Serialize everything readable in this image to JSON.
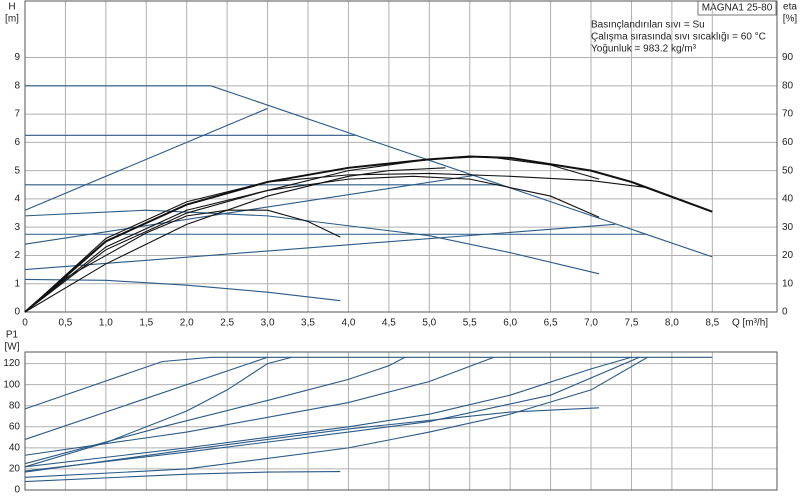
{
  "chart_data": [
    {
      "type": "line",
      "title": "MAGNA1 25-80",
      "annotations": [
        "Basınçlandırılan sıvı = Su",
        "Çalışma sırasında sıvı sıcaklığı = 60 °C",
        "Yoğunluk = 983.2 kg/m³"
      ],
      "y_label": "H",
      "y_unit": "[m]",
      "y2_label": "eta",
      "y2_unit": "[%]",
      "x_label": "Q [m³/h]",
      "xlim": [
        0,
        9.3
      ],
      "xticks": [
        0,
        {
          "value": 0.5,
          "label": "0,5"
        },
        {
          "value": 1,
          "label": "1,0"
        },
        {
          "value": 1.5,
          "label": "1,5"
        },
        {
          "value": 2,
          "label": "2,0"
        },
        {
          "value": 2.5,
          "label": "2,5"
        },
        {
          "value": 3,
          "label": "3,0"
        },
        {
          "value": 3.5,
          "label": "3,5"
        },
        {
          "value": 4,
          "label": "4,0"
        },
        {
          "value": 4.5,
          "label": "4,5"
        },
        {
          "value": 5,
          "label": "5,0"
        },
        {
          "value": 5.5,
          "label": "5,5"
        },
        {
          "value": 6,
          "label": "6,0"
        },
        {
          "value": 6.5,
          "label": "6,5"
        },
        {
          "value": 7,
          "label": "7,0"
        },
        {
          "value": 7.5,
          "label": "7,5"
        },
        {
          "value": 8,
          "label": "8,0"
        },
        {
          "value": 8.5,
          "label": "8,5"
        }
      ],
      "ylim": [
        0,
        11
      ],
      "yticks": [
        0,
        1,
        2,
        3,
        4,
        5,
        6,
        7,
        8,
        9
      ],
      "y2lim": [
        0,
        110
      ],
      "y2ticks": [
        0,
        10,
        20,
        30,
        40,
        50,
        60,
        70,
        80,
        90
      ],
      "series": [
        {
          "color": "#2b5a86",
          "x": [
            0,
            2.3,
            8.5
          ],
          "values": [
            8,
            8,
            1.95
          ]
        },
        {
          "color": "#2b5a86",
          "x": [
            0,
            4.09
          ],
          "values": [
            6.25,
            6.25
          ]
        },
        {
          "color": "#2b5a86",
          "x": [
            0,
            5.89
          ],
          "values": [
            4.5,
            4.5
          ]
        },
        {
          "color": "#2b5a86",
          "x": [
            0,
            7.68
          ],
          "values": [
            2.75,
            2.75
          ]
        },
        {
          "color": "#2b5a86",
          "x": [
            0,
            3.0
          ],
          "values": [
            3.6,
            7.2
          ]
        },
        {
          "color": "#2b5a86",
          "x": [
            0,
            5.6
          ],
          "values": [
            2.4,
            4.85
          ]
        },
        {
          "color": "#2b5a86",
          "x": [
            0,
            7.3
          ],
          "values": [
            1.5,
            3.1
          ]
        },
        {
          "color": "#2b5a86",
          "x": [
            0,
            1,
            2,
            3,
            3.9
          ],
          "values": [
            1.15,
            1.12,
            0.95,
            0.7,
            0.4
          ]
        },
        {
          "color": "#2b5a86",
          "x": [
            0,
            1.5,
            3,
            5,
            6,
            7.1
          ],
          "values": [
            3.4,
            3.6,
            3.4,
            2.7,
            2.1,
            1.35
          ]
        },
        {
          "color": "#111111",
          "axis": "y2",
          "width": 2,
          "x": [
            0,
            1,
            2,
            3,
            4,
            5,
            5.5,
            6,
            7,
            7.5,
            8.5
          ],
          "values": [
            0,
            25,
            38,
            46,
            51,
            54,
            55,
            54.5,
            50,
            46,
            35.5
          ]
        },
        {
          "color": "#111111",
          "axis": "y2",
          "x": [
            0,
            1,
            2,
            3,
            4,
            5,
            6,
            7,
            7.7
          ],
          "values": [
            0,
            26,
            39,
            46,
            48.5,
            49,
            48,
            46.5,
            44
          ]
        },
        {
          "color": "#111111",
          "axis": "y2",
          "x": [
            0,
            1,
            2,
            3,
            4,
            5,
            5.7,
            6.5,
            7.1
          ],
          "values": [
            0,
            22,
            35,
            43,
            50,
            54,
            55,
            52,
            47
          ]
        },
        {
          "color": "#111111",
          "axis": "y2",
          "x": [
            0,
            1,
            2,
            3,
            4,
            4.8,
            5.5,
            6.5,
            7.1
          ],
          "values": [
            0,
            23,
            36,
            43,
            47,
            48,
            47,
            41,
            33.5
          ]
        },
        {
          "color": "#111111",
          "axis": "y2",
          "x": [
            0,
            0.5,
            1,
            1.5,
            2,
            2.5,
            3,
            3.5,
            3.9
          ],
          "values": [
            0,
            12,
            20,
            28,
            34,
            36,
            36,
            32,
            26.5
          ]
        },
        {
          "color": "#111111",
          "axis": "y2",
          "x": [
            0,
            1,
            2,
            3,
            4,
            4.5,
            5.2
          ],
          "values": [
            0,
            17,
            31,
            41,
            48,
            50,
            51
          ]
        }
      ]
    },
    {
      "type": "line",
      "y_label": "P1",
      "y_unit": "[W]",
      "xlim": [
        0,
        9.3
      ],
      "ylim": [
        0,
        131
      ],
      "yticks": [
        0,
        20,
        40,
        60,
        80,
        100,
        120
      ],
      "series": [
        {
          "color": "#2b5a86",
          "x": [
            0,
            1.7,
            2.3,
            8.5
          ],
          "values": [
            77,
            122,
            126,
            126
          ]
        },
        {
          "color": "#2b5a86",
          "x": [
            0,
            3.0
          ],
          "values": [
            48,
            126
          ]
        },
        {
          "color": "#2b5a86",
          "x": [
            0,
            1,
            2,
            2.5,
            3,
            3.3
          ],
          "values": [
            22,
            45,
            75,
            95,
            120,
            126
          ]
        },
        {
          "color": "#2b5a86",
          "x": [
            0,
            1.7,
            3,
            4,
            4.5,
            4.7
          ],
          "values": [
            25,
            60,
            85,
            105,
            118,
            126
          ]
        },
        {
          "color": "#2b5a86",
          "x": [
            0,
            2,
            4,
            5,
            5.8
          ],
          "values": [
            33,
            55,
            83,
            103,
            126
          ]
        },
        {
          "color": "#2b5a86",
          "x": [
            0,
            2,
            4,
            5,
            6,
            7,
            7.5
          ],
          "values": [
            22,
            40,
            60,
            72,
            90,
            115,
            126
          ]
        },
        {
          "color": "#2b5a86",
          "x": [
            0,
            2,
            4,
            5,
            6,
            7,
            7.7
          ],
          "values": [
            12,
            20,
            40,
            55,
            72,
            95,
            126
          ]
        },
        {
          "color": "#2b5a86",
          "x": [
            0,
            2,
            4,
            5,
            6.5,
            7.6
          ],
          "values": [
            18,
            36,
            55,
            65,
            90,
            126
          ]
        },
        {
          "color": "#2b5a86",
          "x": [
            0,
            2,
            4,
            5,
            6,
            7.1
          ],
          "values": [
            17,
            38,
            58,
            66,
            74,
            78
          ]
        },
        {
          "color": "#2b5a86",
          "x": [
            0,
            2,
            3,
            3.9
          ],
          "values": [
            8,
            15,
            17,
            17.5
          ]
        }
      ]
    }
  ]
}
